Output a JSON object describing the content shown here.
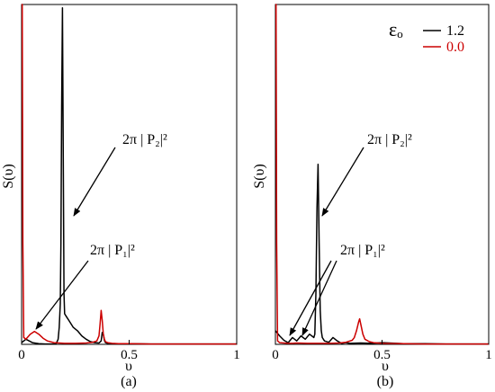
{
  "figure": {
    "panel_a_caption": "(a)",
    "panel_b_caption": "(b)",
    "panel_a_annotations": {
      "p2": "2π | P₂|²",
      "p1": "2π | P₁|²"
    },
    "panel_b_annotations": {
      "p2": "2π | P₂|²",
      "p1": "2π | P₁|²"
    }
  },
  "chart_data": [
    {
      "type": "line",
      "panel": "a",
      "xlabel": "υ",
      "ylabel": "S(υ)",
      "xlim": [
        0,
        1
      ],
      "ylim": [
        0,
        1
      ],
      "x_ticks": [
        0,
        0.5,
        1
      ],
      "x_tick_labels": [
        "0",
        "0.5",
        "1"
      ],
      "y_tick_labels": [],
      "grid": false,
      "colors": {
        "eps_1_2": "#000000",
        "eps_0_0": "#cc0000"
      },
      "series": [
        {
          "key": "eps_1_2",
          "x": [
            0,
            0.02,
            0.05,
            0.08,
            0.11,
            0.14,
            0.16,
            0.17,
            0.175,
            0.18,
            0.183,
            0.186,
            0.19,
            0.194,
            0.197,
            0.2,
            0.21,
            0.22,
            0.24,
            0.26,
            0.28,
            0.3,
            0.32,
            0.34,
            0.36,
            0.37,
            0.375,
            0.38,
            0.385,
            0.39,
            0.4,
            0.42,
            0.45,
            0.5,
            0.6,
            0.7,
            0.8,
            0.9,
            1.0
          ],
          "y": [
            0.005,
            0.015,
            0.005,
            0.002,
            0.001,
            0.001,
            0.001,
            0.015,
            0.05,
            0.12,
            0.3,
            0.7,
            0.99,
            0.5,
            0.15,
            0.09,
            0.08,
            0.07,
            0.05,
            0.04,
            0.025,
            0.015,
            0.008,
            0.005,
            0.004,
            0.01,
            0.035,
            0.03,
            0.012,
            0.005,
            0.003,
            0.002,
            0.002,
            0.002,
            0.001,
            0.001,
            0.001,
            0.001,
            0.001
          ]
        },
        {
          "key": "eps_0_0",
          "x": [
            0,
            0.003,
            0.006,
            0.01,
            0.02,
            0.04,
            0.06,
            0.08,
            0.1,
            0.12,
            0.15,
            0.2,
            0.25,
            0.3,
            0.33,
            0.35,
            0.36,
            0.365,
            0.37,
            0.375,
            0.38,
            0.385,
            0.39,
            0.4,
            0.42,
            0.45,
            0.5,
            0.6,
            0.7,
            0.8,
            0.9,
            1.0
          ],
          "y": [
            1.0,
            1.0,
            0.3,
            0.02,
            0.015,
            0.03,
            0.038,
            0.03,
            0.018,
            0.01,
            0.005,
            0.003,
            0.003,
            0.004,
            0.006,
            0.01,
            0.025,
            0.06,
            0.1,
            0.07,
            0.03,
            0.015,
            0.008,
            0.005,
            0.003,
            0.002,
            0.002,
            0.001,
            0.001,
            0.001,
            0.001,
            0.001
          ]
        }
      ]
    },
    {
      "type": "line",
      "panel": "b",
      "xlabel": "υ",
      "ylabel": "S(υ)",
      "xlim": [
        0,
        1
      ],
      "ylim": [
        0,
        1
      ],
      "x_ticks": [
        0,
        0.5,
        1
      ],
      "x_tick_labels": [
        "0",
        "0.5",
        "1"
      ],
      "y_tick_labels": [],
      "grid": false,
      "legend": {
        "title": "εₒ",
        "placement": "top-right",
        "entries": [
          {
            "label": "1.2",
            "color": "#000000"
          },
          {
            "label": "0.0",
            "color": "#cc0000"
          }
        ]
      },
      "colors": {
        "eps_1_2": "#000000",
        "eps_0_0": "#cc0000"
      },
      "series": [
        {
          "key": "eps_1_2",
          "x": [
            0,
            0.02,
            0.04,
            0.06,
            0.08,
            0.1,
            0.12,
            0.14,
            0.16,
            0.18,
            0.185,
            0.19,
            0.195,
            0.2,
            0.205,
            0.21,
            0.215,
            0.22,
            0.23,
            0.25,
            0.27,
            0.29,
            0.31,
            0.33,
            0.35,
            0.4,
            0.45,
            0.5,
            0.6,
            0.7,
            0.8,
            0.9,
            1.0
          ],
          "y": [
            0.04,
            0.025,
            0.012,
            0.005,
            0.02,
            0.01,
            0.025,
            0.015,
            0.03,
            0.02,
            0.03,
            0.15,
            0.4,
            0.53,
            0.3,
            0.1,
            0.04,
            0.02,
            0.01,
            0.006,
            0.02,
            0.01,
            0.003,
            0.005,
            0.003,
            0.004,
            0.003,
            0.005,
            0.002,
            0.002,
            0.001,
            0.001,
            0.001
          ]
        },
        {
          "key": "eps_0_0",
          "x": [
            0,
            0.003,
            0.006,
            0.01,
            0.02,
            0.04,
            0.06,
            0.08,
            0.1,
            0.15,
            0.2,
            0.25,
            0.3,
            0.33,
            0.36,
            0.37,
            0.38,
            0.39,
            0.395,
            0.4,
            0.41,
            0.42,
            0.44,
            0.46,
            0.5,
            0.6,
            0.7,
            0.8,
            0.9,
            1.0
          ],
          "y": [
            1.0,
            1.0,
            0.3,
            0.01,
            0.005,
            0.004,
            0.003,
            0.003,
            0.004,
            0.003,
            0.003,
            0.003,
            0.004,
            0.006,
            0.012,
            0.02,
            0.04,
            0.065,
            0.075,
            0.06,
            0.03,
            0.015,
            0.008,
            0.005,
            0.003,
            0.002,
            0.001,
            0.001,
            0.001,
            0.001
          ]
        }
      ]
    }
  ]
}
